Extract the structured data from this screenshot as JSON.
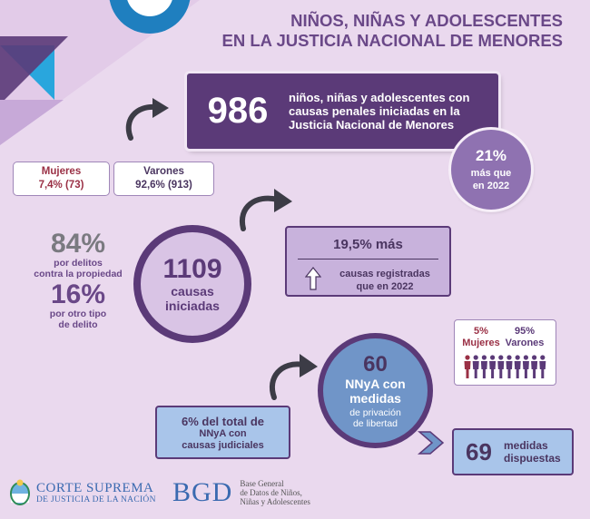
{
  "title": {
    "line1": "NIÑOS, NIÑAS Y ADOLESCENTES",
    "line2": "EN LA JUSTICIA NACIONAL DE MENORES"
  },
  "main": {
    "number": "986",
    "line1": "niños, niñas y adolescentes con",
    "line2": "causas penales iniciadas en la",
    "line3": "Justicia Nacional de Menores"
  },
  "increase_badge": {
    "percent": "21%",
    "line1": "más que",
    "line2": "en 2022"
  },
  "gender": {
    "mujeres_label": "Mujeres",
    "mujeres_value": "7,4% (73)",
    "varones_label": "Varones",
    "varones_value": "92,6% (913)"
  },
  "crime_types": {
    "pct1": "84%",
    "pct1_line1": "por delitos",
    "pct1_line2": "contra la propiedad",
    "pct2": "16%",
    "pct2_line1": "por otro tipo",
    "pct2_line2": "de delito"
  },
  "causes": {
    "number": "1109",
    "line1": "causas",
    "line2": "iniciadas"
  },
  "causes_increase": {
    "title": "19,5% más",
    "line1": "causas registradas",
    "line2": "que en 2022"
  },
  "detention_gender": {
    "mujeres_pct": "5%",
    "mujeres_label": "Mujeres",
    "varones_pct": "95%",
    "varones_label": "Varones",
    "mujeres_icons": 1,
    "varones_icons": 9
  },
  "measures": {
    "number": "60",
    "line1": "NNyA con",
    "line2": "medidas",
    "line3": "de privación",
    "line4": "de libertad"
  },
  "share": {
    "line1": "6% del total de",
    "line2": "NNyA con",
    "line3": "causas judiciales"
  },
  "measures_total": {
    "number": "69",
    "line1": "medidas",
    "line2": "dispuestas"
  },
  "footer": {
    "csj_line1": "CORTE SUPREMA",
    "csj_line2": "DE JUSTICIA DE LA NACIÓN",
    "bgd_logo": "BGD",
    "bgd_line1": "Base General",
    "bgd_line2": "de Datos de Niños,",
    "bgd_line3": "Niñas y Adolescentes"
  },
  "colors": {
    "background": "#ead9ee",
    "dark_purple": "#5b3a78",
    "mid_purple": "#8f72b1",
    "light_purple": "#c8b2dc",
    "light_blue": "#a9c5ea",
    "mid_blue": "#7095c8",
    "accent_cyan": "#29a6dd",
    "women_red": "#9a3045"
  },
  "icons": [
    "curved-arrow-icon",
    "up-arrow-icon",
    "person-icon",
    "right-arrow-icon",
    "argentina-shield-icon"
  ]
}
